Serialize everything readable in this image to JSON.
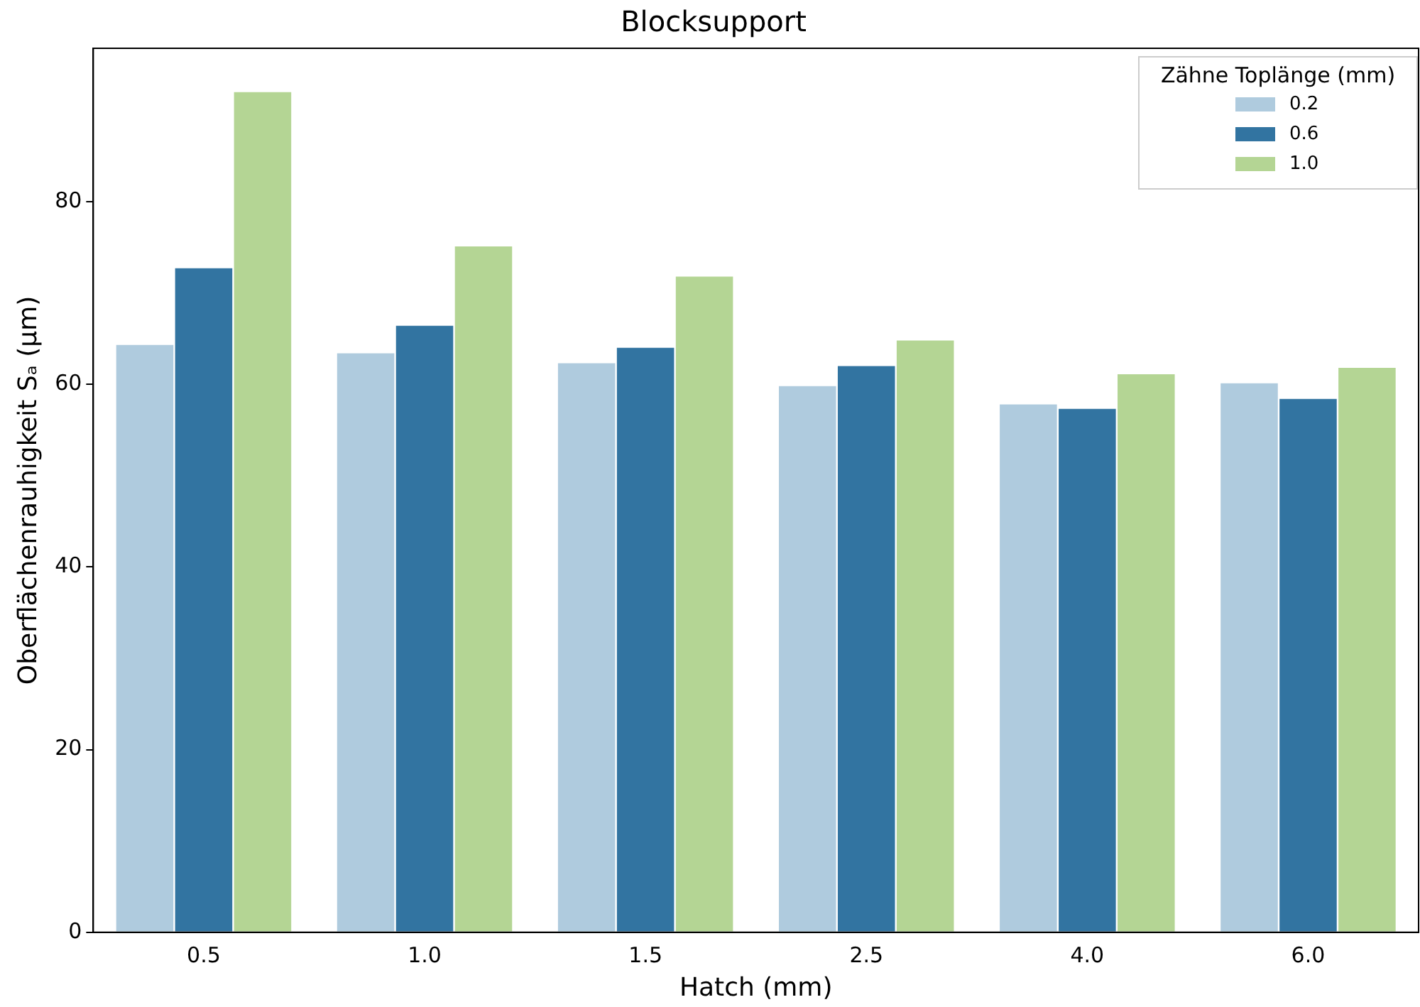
{
  "chart_data": {
    "type": "bar",
    "title": "Blocksupport",
    "xlabel": "Hatch (mm)",
    "ylabel": "Oberflächenrauhigkeit Sₐ (µm)",
    "legend_title": "Zähne Toplänge (mm)",
    "categories": [
      "0.5",
      "1.0",
      "1.5",
      "2.5",
      "4.0",
      "6.0"
    ],
    "series": [
      {
        "name": "0.2",
        "color": "#afcbde",
        "values": [
          64.4,
          63.5,
          62.4,
          59.9,
          57.9,
          60.2
        ]
      },
      {
        "name": "0.6",
        "color": "#3274a1",
        "values": [
          72.8,
          66.5,
          64.1,
          62.1,
          57.4,
          58.5
        ]
      },
      {
        "name": "1.0",
        "color": "#b4d594",
        "values": [
          92.1,
          75.2,
          71.9,
          64.9,
          61.2,
          61.9
        ]
      }
    ],
    "ylim": [
      0,
      96.8
    ],
    "yticks": [
      0,
      20,
      40,
      60,
      80
    ],
    "grid": false,
    "legend": "top right"
  }
}
